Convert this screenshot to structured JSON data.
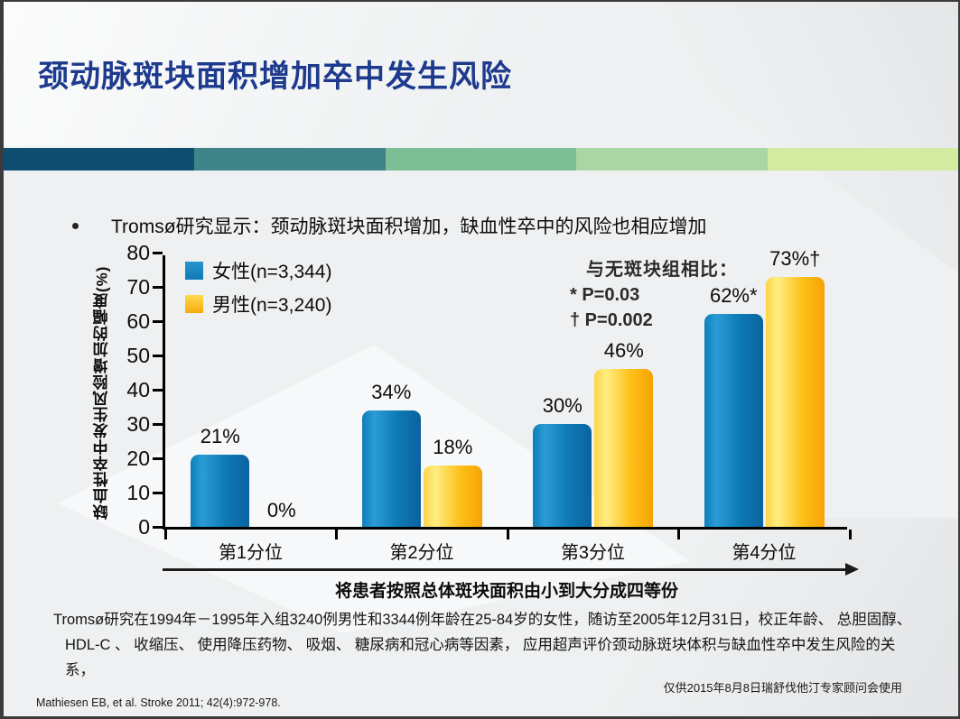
{
  "title": "颈动脉斑块面积增加卒中发生风险",
  "accent_band_colors": [
    "#0f4d71",
    "#3d8588",
    "#7cbf97",
    "#a9d6a2",
    "#d2eb9e"
  ],
  "bullet": "Tromsø研究显示：颈动脉斑块面积增加，缺血性卒中的风险也相应增加",
  "chart_data": {
    "type": "bar",
    "categories": [
      "第1分位",
      "第2分位",
      "第3分位",
      "第4分位"
    ],
    "series": [
      {
        "name": "女性(n=3,344)",
        "color": "#0e7ab6",
        "values": [
          21,
          34,
          30,
          62
        ],
        "labels": [
          "21%",
          "34%",
          "30%",
          "62%*"
        ]
      },
      {
        "name": "男性(n=3,240)",
        "color": "#fbb616",
        "values": [
          0,
          18,
          46,
          73
        ],
        "labels": [
          "0%",
          "18%",
          "46%",
          "73%†"
        ]
      }
    ],
    "ylabel": "缺血性卒中发生风险增加的幅度(%)",
    "ylim": [
      0,
      80
    ],
    "ytick_step": 10,
    "grid": false,
    "legend_position": "top-left",
    "annotation": {
      "header": "与无斑块组相比：",
      "lines": [
        "* P=0.03",
        "† P=0.002"
      ]
    },
    "xlabel": "将患者按照总体斑块面积由小到大分成四等份"
  },
  "footnote": {
    "line1": "Tromsø研究在1994年－1995年入组3240例男性和3344例年龄在25-84岁的女性，随访至2005年12月31日，校正年龄、 总胆固醇、",
    "line2": "HDL-C 、 收缩压、 使用降压药物、 吸烟、 糖尿病和冠心病等因素， 应用超声评价颈动脉斑块体积与缺血性卒中发生风险的关系，"
  },
  "usage_note": "仅供2015年8月8日瑞舒伐他汀专家顾问会使用",
  "reference": "Mathiesen EB, et al. Stroke 2011; 42(4):972-978."
}
